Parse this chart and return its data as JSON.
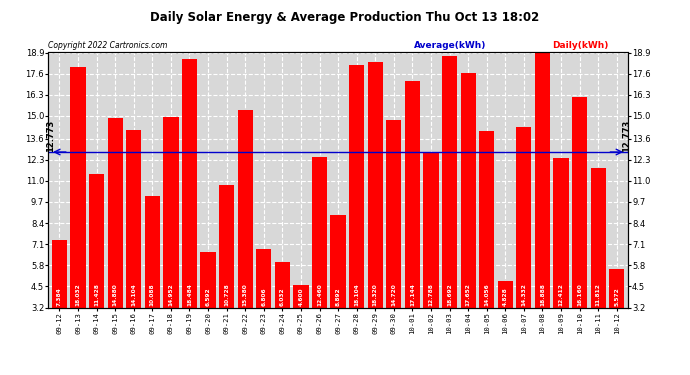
{
  "title": "Daily Solar Energy & Average Production Thu Oct 13 18:02",
  "copyright": "Copyright 2022 Cartronics.com",
  "legend_avg": "Average(kWh)",
  "legend_daily": "Daily(kWh)",
  "average_value": 12.773,
  "categories": [
    "09-12",
    "09-13",
    "09-14",
    "09-15",
    "09-16",
    "09-17",
    "09-18",
    "09-19",
    "09-20",
    "09-21",
    "09-22",
    "09-23",
    "09-24",
    "09-25",
    "09-26",
    "09-27",
    "09-28",
    "09-29",
    "09-30",
    "10-01",
    "10-02",
    "10-03",
    "10-04",
    "10-05",
    "10-06",
    "10-07",
    "10-08",
    "10-09",
    "10-10",
    "10-11",
    "10-12"
  ],
  "values": [
    7.384,
    18.032,
    11.428,
    14.88,
    14.104,
    10.088,
    14.952,
    18.484,
    6.592,
    10.728,
    15.38,
    6.806,
    6.032,
    4.6,
    12.46,
    8.892,
    18.104,
    18.32,
    14.72,
    17.144,
    12.788,
    18.692,
    17.652,
    14.056,
    4.828,
    14.332,
    18.888,
    12.412,
    16.16,
    11.812,
    5.572
  ],
  "bar_color": "#ff0000",
  "avg_line_color": "#0000cc",
  "avg_text_color": "#000000",
  "title_color": "#000000",
  "copyright_color": "#000000",
  "legend_avg_color": "#0000cc",
  "legend_daily_color": "#ff0000",
  "bg_color": "#ffffff",
  "plot_bg_color": "#d8d8d8",
  "grid_color": "#ffffff",
  "ylim_min": 3.2,
  "ylim_max": 18.9,
  "yticks": [
    3.2,
    4.5,
    5.8,
    7.1,
    8.4,
    9.7,
    11.0,
    12.3,
    13.6,
    15.0,
    16.3,
    17.6,
    18.9
  ]
}
